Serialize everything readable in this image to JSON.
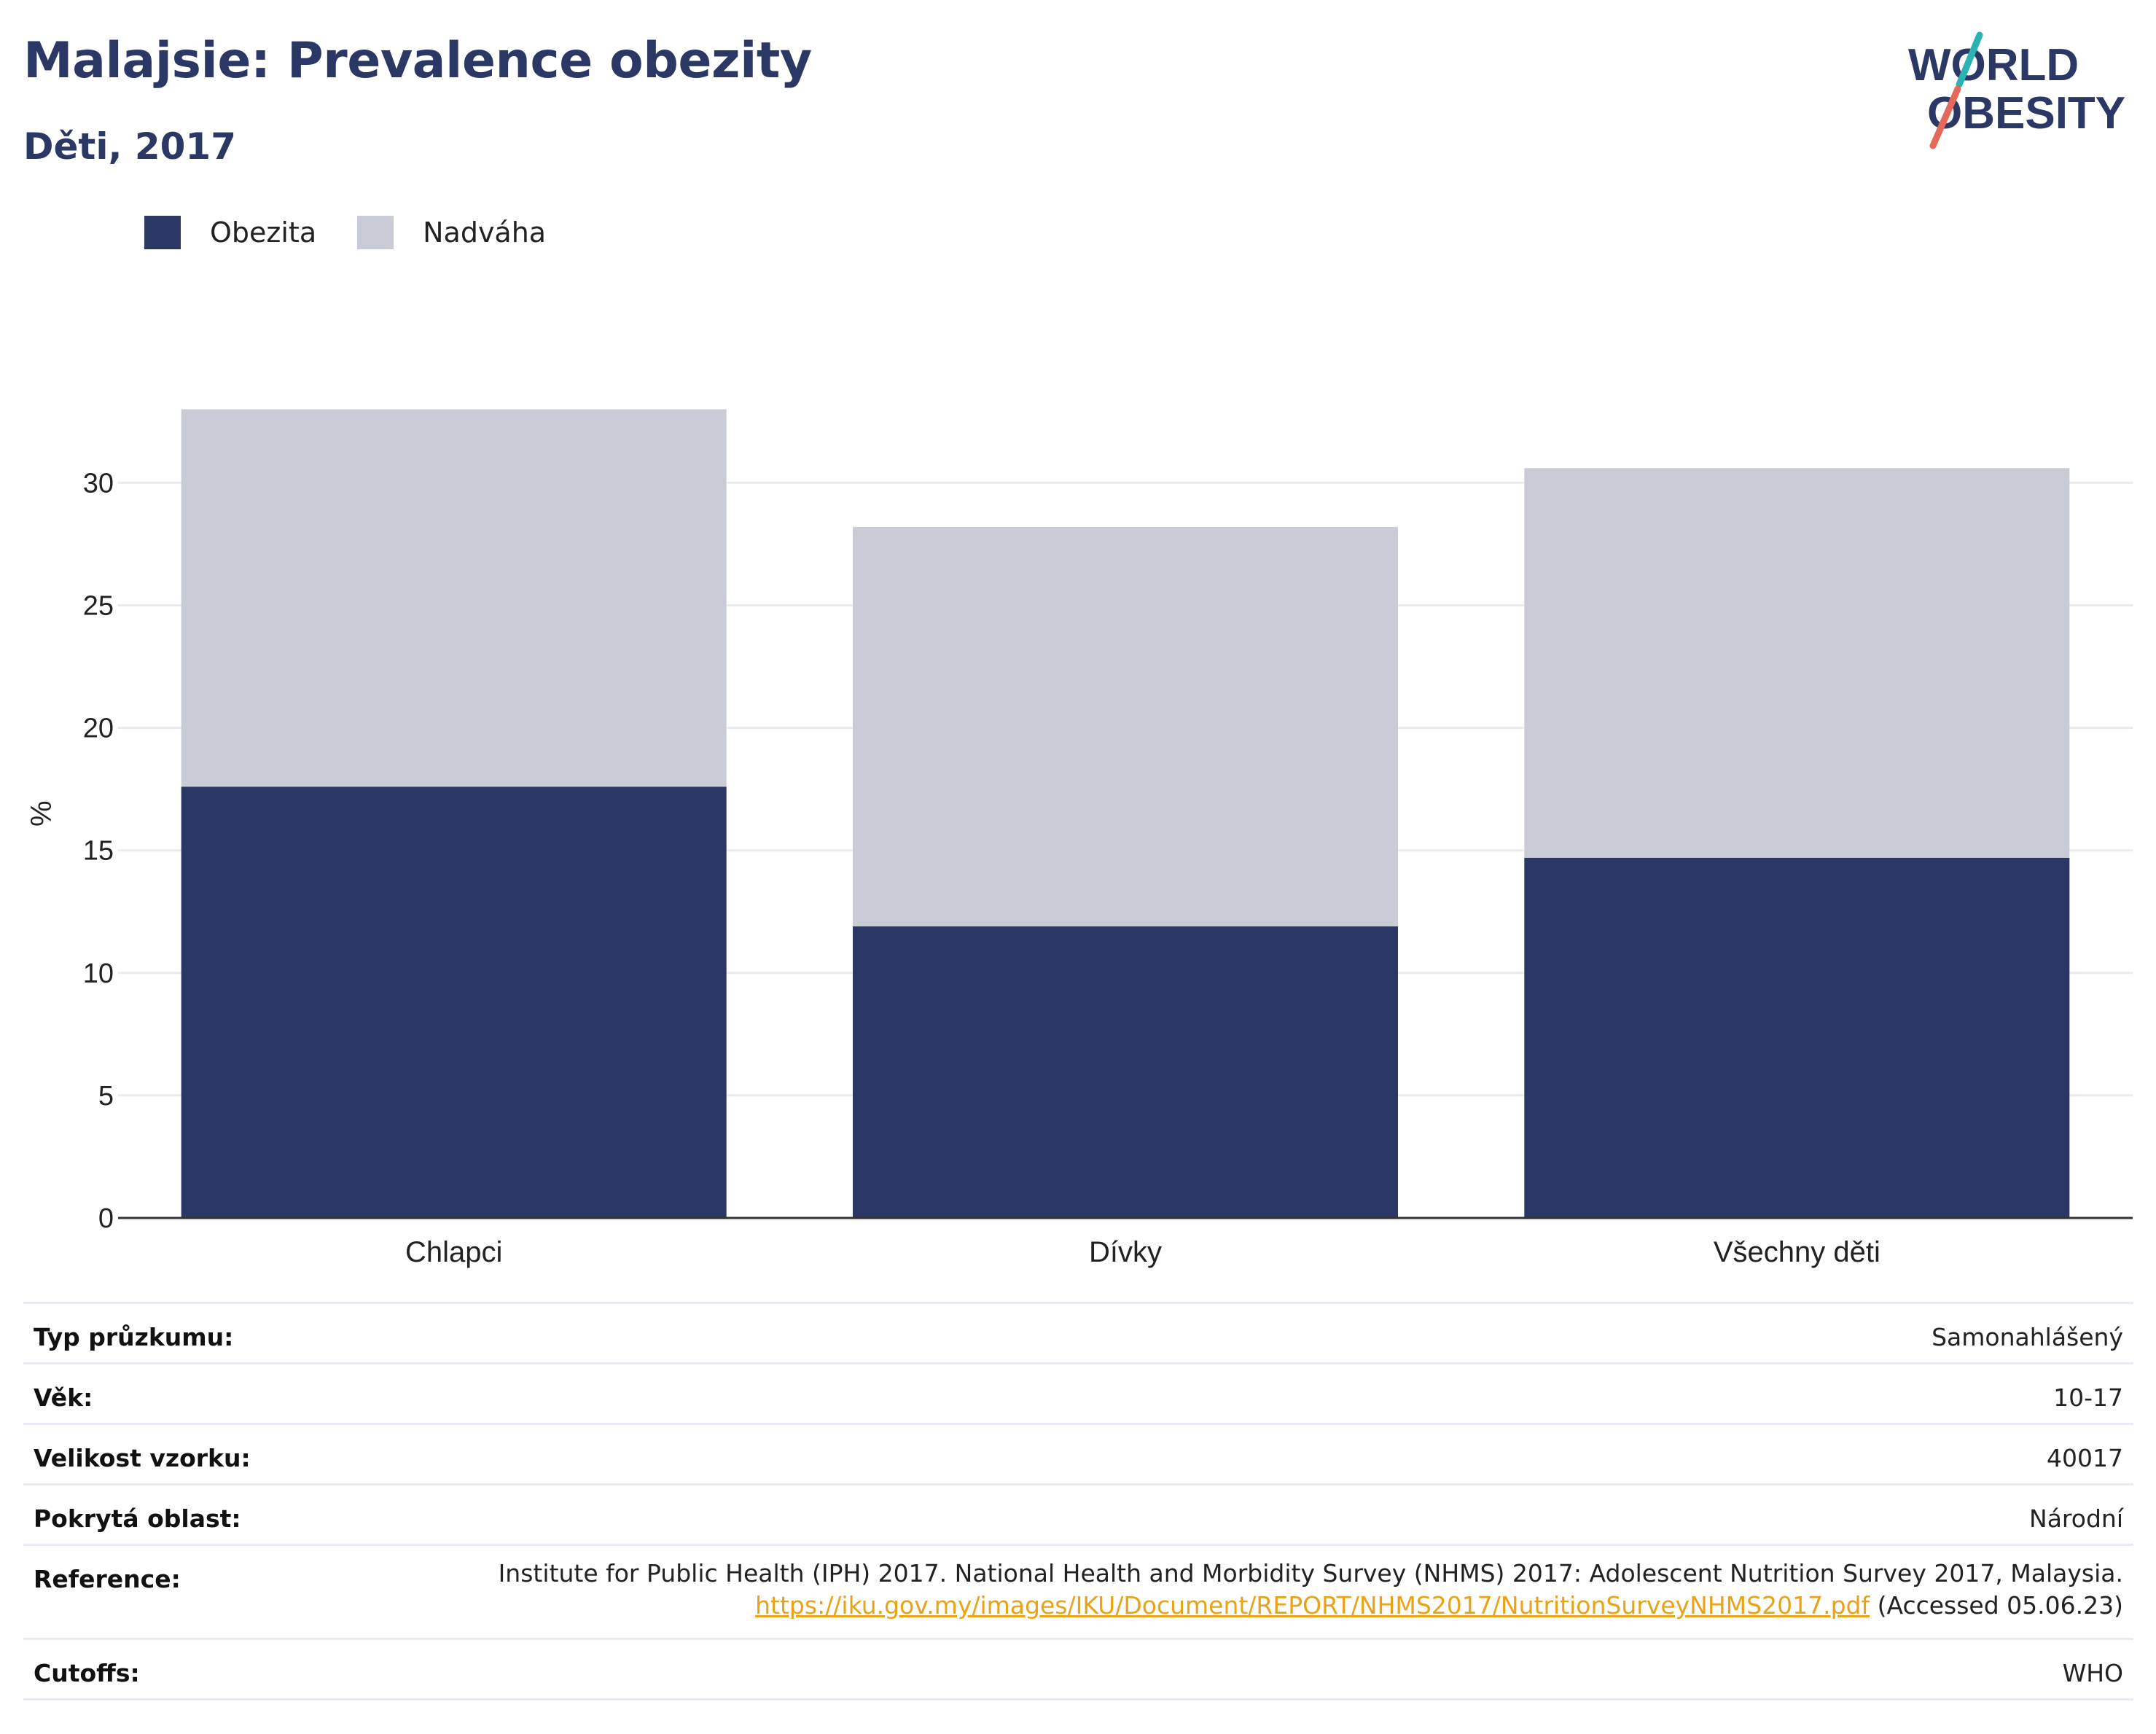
{
  "header": {
    "title": "Malajsie: Prevalence obezity",
    "subtitle": "Děti, 2017"
  },
  "logo": {
    "line1": "WORLD",
    "line2": "OBESITY",
    "colors": {
      "text": "#2b3764",
      "slash_top": "#2ab3b1",
      "slash_bottom": "#e5685a"
    }
  },
  "legend": [
    {
      "label": "Obezita",
      "color": "#2b3764"
    },
    {
      "label": "Nadváha",
      "color": "#c9ccd7"
    }
  ],
  "chart_data": {
    "type": "bar",
    "stacked": true,
    "categories": [
      "Chlapci",
      "Dívky",
      "Všechny děti"
    ],
    "series": [
      {
        "name": "Obezita",
        "values": [
          17.6,
          11.9,
          14.7
        ],
        "color": "#2b3764"
      },
      {
        "name": "Nadváha",
        "values": [
          15.4,
          16.3,
          15.9
        ],
        "color": "#c9ccd7"
      }
    ],
    "ylabel": "%",
    "ylim": [
      0,
      33
    ],
    "yticks": [
      0,
      5,
      10,
      15,
      20,
      25,
      30
    ],
    "grid": true,
    "legend_position": "top-left"
  },
  "info": {
    "survey_type_label": "Typ průzkumu:",
    "survey_type_value": "Samonahlášený",
    "age_label": "Věk:",
    "age_value": "10-17",
    "sample_label": "Velikost vzorku:",
    "sample_value": "40017",
    "area_label": "Pokrytá oblast:",
    "area_value": "Národní",
    "reference_label": "Reference:",
    "reference_text": "Institute for Public Health (IPH) 2017. National Health and Morbidity Survey (NHMS) 2017: Adolescent Nutrition Survey 2017, Malaysia.",
    "reference_link": "https://iku.gov.my/images/IKU/Document/REPORT/NHMS2017/NutritionSurveyNHMS2017.pdf",
    "reference_accessed": " (Accessed 05.06.23)",
    "cutoffs_label": "Cutoffs:",
    "cutoffs_value": "WHO"
  }
}
